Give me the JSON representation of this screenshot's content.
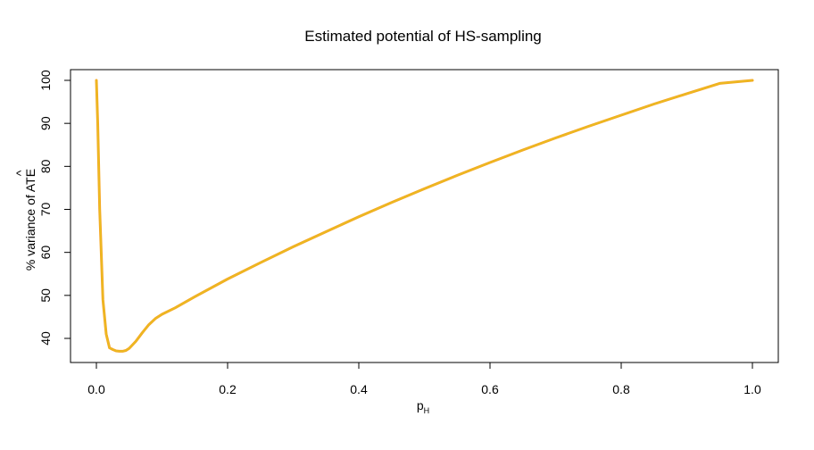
{
  "chart_data": {
    "type": "line",
    "title": "Estimated potential of HS-sampling",
    "xlabel": {
      "main": "p",
      "subscript": "H"
    },
    "ylabel": {
      "prefix": "% variance of ",
      "hat_text": "ATE"
    },
    "xlim": [
      -0.04,
      1.04
    ],
    "ylim": [
      34,
      102
    ],
    "xticks": [
      0.0,
      0.2,
      0.4,
      0.6,
      0.8,
      1.0
    ],
    "xtick_labels": [
      "0.0",
      "0.2",
      "0.4",
      "0.6",
      "0.8",
      "1.0"
    ],
    "yticks": [
      40,
      50,
      60,
      70,
      80,
      90,
      100
    ],
    "ytick_labels": [
      "40",
      "50",
      "60",
      "70",
      "80",
      "90",
      "100"
    ],
    "grid": false,
    "series": [
      {
        "color": "#f5a623",
        "line_color_inner": "#e8c020",
        "x": [
          0.0,
          0.002,
          0.005,
          0.01,
          0.015,
          0.02,
          0.025,
          0.03,
          0.035,
          0.04,
          0.045,
          0.05,
          0.06,
          0.07,
          0.08,
          0.09,
          0.1,
          0.12,
          0.15,
          0.2,
          0.25,
          0.3,
          0.35,
          0.4,
          0.45,
          0.5,
          0.55,
          0.6,
          0.65,
          0.7,
          0.75,
          0.8,
          0.85,
          0.9,
          0.95,
          1.0
        ],
        "y": [
          100,
          90,
          70,
          49,
          41,
          37.8,
          37.4,
          37.1,
          37.0,
          37.0,
          37.2,
          37.7,
          39.3,
          41.3,
          43.2,
          44.6,
          45.6,
          47.1,
          49.7,
          53.8,
          57.6,
          61.3,
          64.8,
          68.3,
          71.6,
          74.8,
          77.9,
          80.9,
          83.8,
          86.6,
          89.3,
          91.9,
          94.5,
          96.9,
          99.3,
          100
        ]
      }
    ]
  }
}
